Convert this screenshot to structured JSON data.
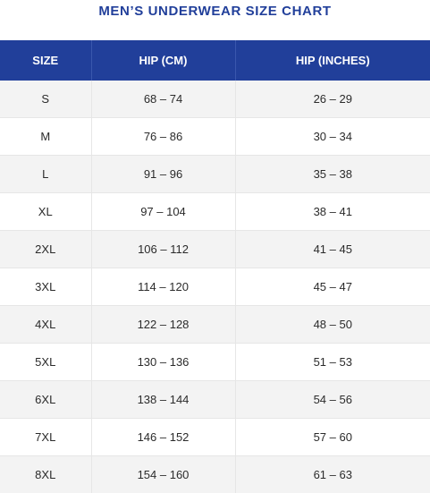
{
  "title": "MEN’S UNDERWEAR SIZE CHART",
  "headers": {
    "size": "SIZE",
    "hip_cm": "HIP (CM)",
    "hip_in": "HIP (INCHES)"
  },
  "rows": [
    {
      "size": "S",
      "hip_cm": "68 – 74",
      "hip_in": "26 – 29"
    },
    {
      "size": "M",
      "hip_cm": "76 – 86",
      "hip_in": "30 – 34"
    },
    {
      "size": "L",
      "hip_cm": "91 – 96",
      "hip_in": "35 – 38"
    },
    {
      "size": "XL",
      "hip_cm": "97 – 104",
      "hip_in": "38 – 41"
    },
    {
      "size": "2XL",
      "hip_cm": "106 – 112",
      "hip_in": "41 – 45"
    },
    {
      "size": "3XL",
      "hip_cm": "114 – 120",
      "hip_in": "45 – 47"
    },
    {
      "size": "4XL",
      "hip_cm": "122 – 128",
      "hip_in": "48 – 50"
    },
    {
      "size": "5XL",
      "hip_cm": "130 – 136",
      "hip_in": "51 – 53"
    },
    {
      "size": "6XL",
      "hip_cm": "138 – 144",
      "hip_in": "54 – 56"
    },
    {
      "size": "7XL",
      "hip_cm": "146 – 152",
      "hip_in": "57 – 60"
    },
    {
      "size": "8XL",
      "hip_cm": "154 – 160",
      "hip_in": "61 – 63"
    }
  ],
  "colors": {
    "header_bg": "#213f9a",
    "title": "#213f9a",
    "row_alt": "#f3f3f3"
  }
}
